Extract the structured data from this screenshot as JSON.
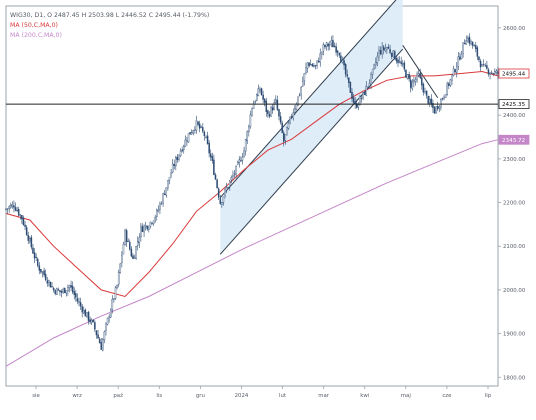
{
  "chart_data": {
    "type": "candlestick",
    "instrument_line": "WIG30, D1, O 2487.45 H 2503.98 L 2446.52 C 2495.44 (-1.79%)",
    "legend": [
      {
        "label": "MA (50,C,MA,0)",
        "color": "#d9383a"
      },
      {
        "label": "MA (200,C,MA,0)",
        "color": "#c586c9"
      }
    ],
    "x_tick_labels": [
      "sie",
      "wrz",
      "paź",
      "lis",
      "gru",
      "2024",
      "lut",
      "mar",
      "kwi",
      "maj",
      "cze",
      "lip"
    ],
    "y_tick_labels": [
      "2600.00",
      "2500.00",
      "2400.00",
      "2300.00",
      "2200.00",
      "2100.00",
      "2000.00",
      "1900.00",
      "1800.00"
    ],
    "y_range": [
      1780,
      2650
    ],
    "price_labels": [
      {
        "text": "2495.44",
        "value": 2495.44,
        "style": "current"
      },
      {
        "text": "2425.35",
        "value": 2425.35,
        "style": "level"
      },
      {
        "text": "2343.72",
        "value": 2343.72,
        "style": "ma200"
      }
    ],
    "horizontal_level": 2425.35,
    "price_path": [
      [
        0,
        2185
      ],
      [
        5,
        2195
      ],
      [
        10,
        2165
      ],
      [
        15,
        2110
      ],
      [
        20,
        2055
      ],
      [
        25,
        2030
      ],
      [
        30,
        2000
      ],
      [
        35,
        1995
      ],
      [
        40,
        2010
      ],
      [
        45,
        1975
      ],
      [
        50,
        1945
      ],
      [
        55,
        1920
      ],
      [
        60,
        1870
      ],
      [
        65,
        1945
      ],
      [
        70,
        2010
      ],
      [
        75,
        2130
      ],
      [
        80,
        2070
      ],
      [
        85,
        2140
      ],
      [
        90,
        2150
      ],
      [
        95,
        2175
      ],
      [
        100,
        2225
      ],
      [
        105,
        2280
      ],
      [
        110,
        2320
      ],
      [
        115,
        2355
      ],
      [
        120,
        2380
      ],
      [
        125,
        2355
      ],
      [
        130,
        2290
      ],
      [
        135,
        2200
      ],
      [
        140,
        2240
      ],
      [
        145,
        2275
      ],
      [
        150,
        2320
      ],
      [
        155,
        2420
      ],
      [
        160,
        2460
      ],
      [
        165,
        2400
      ],
      [
        170,
        2430
      ],
      [
        175,
        2340
      ],
      [
        180,
        2400
      ],
      [
        185,
        2450
      ],
      [
        190,
        2520
      ],
      [
        195,
        2510
      ],
      [
        200,
        2555
      ],
      [
        205,
        2565
      ],
      [
        210,
        2545
      ],
      [
        215,
        2480
      ],
      [
        220,
        2420
      ],
      [
        225,
        2445
      ],
      [
        230,
        2485
      ],
      [
        235,
        2545
      ],
      [
        240,
        2555
      ],
      [
        245,
        2535
      ],
      [
        250,
        2510
      ],
      [
        255,
        2470
      ],
      [
        260,
        2490
      ],
      [
        265,
        2440
      ],
      [
        270,
        2410
      ],
      [
        275,
        2440
      ],
      [
        280,
        2480
      ],
      [
        285,
        2525
      ],
      [
        290,
        2580
      ],
      [
        295,
        2555
      ],
      [
        300,
        2510
      ],
      [
        305,
        2500
      ],
      [
        310,
        2495
      ]
    ],
    "ma50_path": [
      [
        0,
        2175
      ],
      [
        15,
        2160
      ],
      [
        30,
        2100
      ],
      [
        45,
        2050
      ],
      [
        60,
        2000
      ],
      [
        75,
        1985
      ],
      [
        90,
        2040
      ],
      [
        105,
        2105
      ],
      [
        120,
        2180
      ],
      [
        135,
        2225
      ],
      [
        150,
        2275
      ],
      [
        165,
        2320
      ],
      [
        180,
        2345
      ],
      [
        195,
        2385
      ],
      [
        210,
        2425
      ],
      [
        225,
        2455
      ],
      [
        240,
        2480
      ],
      [
        255,
        2490
      ],
      [
        270,
        2490
      ],
      [
        285,
        2495
      ],
      [
        300,
        2500
      ],
      [
        310,
        2490
      ]
    ],
    "ma200_path": [
      [
        0,
        1825
      ],
      [
        30,
        1890
      ],
      [
        60,
        1940
      ],
      [
        90,
        1985
      ],
      [
        120,
        2040
      ],
      [
        150,
        2095
      ],
      [
        180,
        2145
      ],
      [
        210,
        2195
      ],
      [
        240,
        2245
      ],
      [
        270,
        2290
      ],
      [
        300,
        2335
      ],
      [
        310,
        2344
      ]
    ],
    "channels": [
      {
        "start": [
          135,
          2140
        ],
        "end": [
          250,
          2610
        ],
        "width": 130
      },
      {
        "start": [
          250,
          2560
        ],
        "end": [
          272,
          2440
        ],
        "width": 0
      }
    ]
  }
}
